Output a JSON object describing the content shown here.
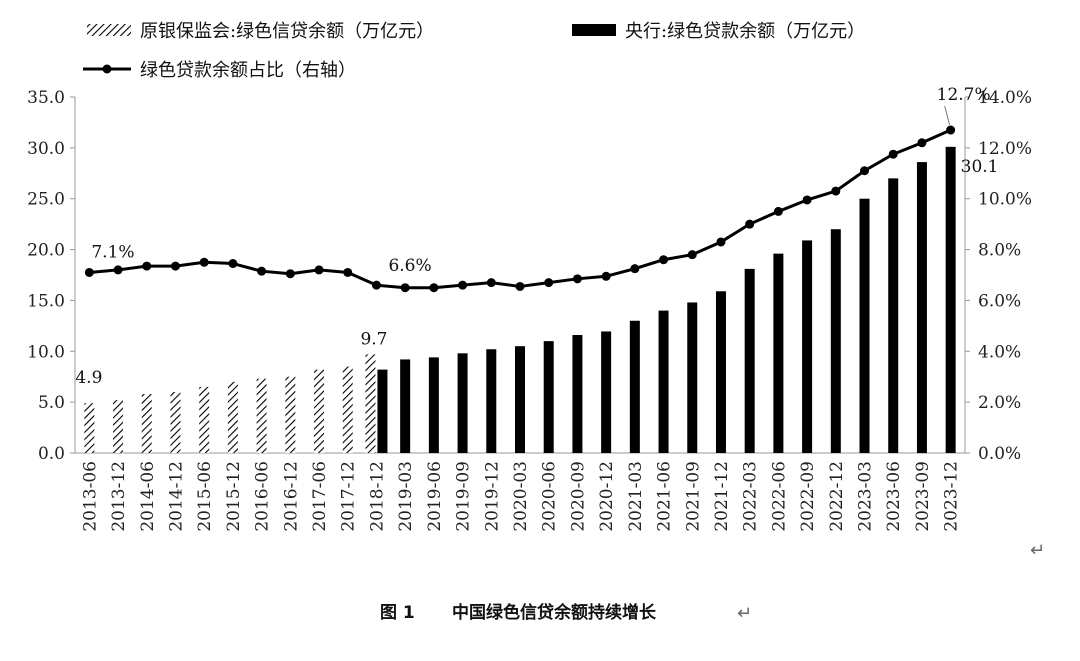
{
  "chart_data": {
    "type": "bar+line",
    "title": "",
    "categories": [
      "2013-06",
      "2013-12",
      "2014-06",
      "2014-12",
      "2015-06",
      "2015-12",
      "2016-06",
      "2016-12",
      "2017-06",
      "2017-12",
      "2018-12",
      "2019-03",
      "2019-06",
      "2019-09",
      "2019-12",
      "2020-03",
      "2020-06",
      "2020-09",
      "2020-12",
      "2021-03",
      "2021-06",
      "2021-09",
      "2021-12",
      "2022-03",
      "2022-06",
      "2022-09",
      "2022-12",
      "2023-03",
      "2023-06",
      "2023-09",
      "2023-12"
    ],
    "legend": [
      {
        "label": "原银保监会:绿色信贷余额（万亿元）",
        "style": "hatched-bar"
      },
      {
        "label": "央行:绿色贷款余额（万亿元）",
        "style": "solid-bar"
      },
      {
        "label": "绿色贷款余额占比（右轴）",
        "style": "line-marker"
      }
    ],
    "series": [
      {
        "name": "原银保监会:绿色信贷余额（万亿元）",
        "axis": "left",
        "kind": "bar",
        "fill": "hatched",
        "values": [
          4.9,
          5.2,
          5.8,
          6.0,
          6.5,
          7.0,
          7.3,
          7.5,
          8.2,
          8.5,
          9.7,
          null,
          null,
          null,
          null,
          null,
          null,
          null,
          null,
          null,
          null,
          null,
          null,
          null,
          null,
          null,
          null,
          null,
          null,
          null,
          null
        ]
      },
      {
        "name": "央行:绿色贷款余额（万亿元）",
        "axis": "left",
        "kind": "bar",
        "fill": "solid",
        "values": [
          null,
          null,
          null,
          null,
          null,
          null,
          null,
          null,
          null,
          null,
          8.2,
          9.2,
          9.4,
          9.8,
          10.2,
          10.5,
          11.0,
          11.6,
          11.95,
          13.0,
          14.0,
          14.8,
          15.9,
          18.1,
          19.6,
          20.9,
          22.0,
          25.0,
          27.0,
          28.6,
          30.1
        ]
      },
      {
        "name": "绿色贷款余额占比（右轴）",
        "axis": "right",
        "kind": "line",
        "values": [
          7.1,
          7.2,
          7.35,
          7.35,
          7.5,
          7.45,
          7.15,
          7.05,
          7.2,
          7.1,
          6.6,
          6.5,
          6.5,
          6.6,
          6.7,
          6.55,
          6.7,
          6.85,
          6.95,
          7.25,
          7.6,
          7.8,
          8.3,
          9.0,
          9.5,
          9.95,
          10.3,
          11.1,
          11.75,
          12.2,
          12.7
        ]
      }
    ],
    "y_left": {
      "min": 0,
      "max": 35,
      "ticks": [
        "0.0",
        "5.0",
        "10.0",
        "15.0",
        "20.0",
        "25.0",
        "30.0",
        "35.0"
      ]
    },
    "y_right": {
      "min": 0,
      "max": 14,
      "ticks": [
        "0.0%",
        "2.0%",
        "4.0%",
        "6.0%",
        "8.0%",
        "10.0%",
        "12.0%",
        "14.0%"
      ]
    },
    "grid": false,
    "legend_position": "top-left",
    "annotations": [
      {
        "text": "4.9",
        "series": 0,
        "index": 0
      },
      {
        "text": "9.7",
        "series": 0,
        "index": 10
      },
      {
        "text": "7.1%",
        "series": 2,
        "index": 0
      },
      {
        "text": "6.6%",
        "series": 2,
        "index": 10
      },
      {
        "text": "12.7%",
        "series": 2,
        "index": 30
      },
      {
        "text": "30.1",
        "series": 1,
        "index": 30
      }
    ],
    "colors": {
      "bar": "#000000",
      "line": "#000000",
      "axis": "#999999"
    }
  },
  "caption": {
    "figure_no": "图 1",
    "title": "中国绿色信贷余额持续增长"
  },
  "return_mark": "↵"
}
